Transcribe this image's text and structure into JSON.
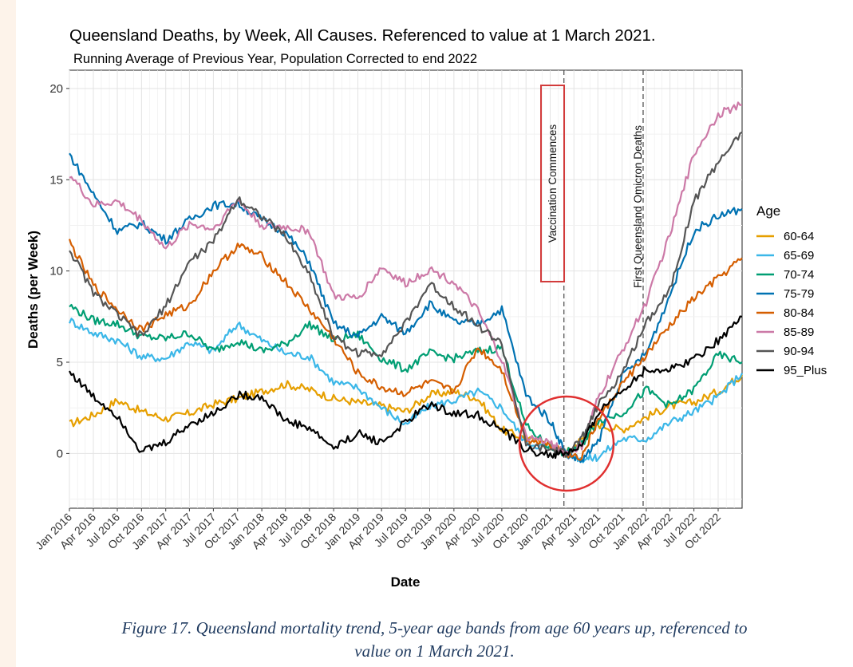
{
  "figure": {
    "caption_line1": "Figure 17. Queensland mortality trend, 5-year age bands from age 60 years up, referenced to",
    "caption_line2": "value on 1 March 2021."
  },
  "chart_data": {
    "type": "line",
    "title": "Queensland Deaths, by Week, All Causes. Referenced to value at 1 March 2021.",
    "subtitle": "Running Average of Previous Year, Population Corrected to end 2022",
    "xlabel": "Date",
    "ylabel": "Deaths (per Week)",
    "x_range": [
      "2016-01-01",
      "2022-12-31"
    ],
    "ylim": [
      -3,
      21
    ],
    "y_ticks": [
      0,
      5,
      10,
      15,
      20
    ],
    "x_tick_labels": [
      "Jan 2016",
      "Apr 2016",
      "Jul 2016",
      "Oct 2016",
      "Jan 2017",
      "Apr 2017",
      "Jul 2017",
      "Oct 2017",
      "Jan 2018",
      "Apr 2018",
      "Jul 2018",
      "Oct 2018",
      "Jan 2019",
      "Apr 2019",
      "Jul 2019",
      "Oct 2019",
      "Jan 2020",
      "Apr 2020",
      "Jul 2020",
      "Oct 2020",
      "Jan 2021",
      "Apr 2021",
      "Jul 2021",
      "Oct 2021",
      "Jan 2022",
      "Apr 2022",
      "Jul 2022",
      "Oct 2022"
    ],
    "grid": true,
    "legend_title": "Age",
    "legend_position": "right",
    "annotations": [
      {
        "label": "Vaccination Commences",
        "x": "2021-02-22",
        "style": "dashed vertical line, boxed rotated label"
      },
      {
        "label": "First Queensland Omicron Deaths",
        "x": "2021-12-20",
        "style": "dashed vertical line, rotated label"
      }
    ],
    "highlight": {
      "shape": "circle",
      "color": "#e03030",
      "center": {
        "x": "2021-03-15",
        "y": 0.3
      }
    },
    "series": [
      {
        "name": "60-64",
        "color": "#e69f00",
        "points": [
          [
            "2016-01-01",
            1.6
          ],
          [
            "2016-04-01",
            2.1
          ],
          [
            "2016-07-01",
            2.9
          ],
          [
            "2016-10-01",
            2.3
          ],
          [
            "2017-01-01",
            1.9
          ],
          [
            "2017-04-01",
            2.2
          ],
          [
            "2017-07-01",
            2.7
          ],
          [
            "2017-10-01",
            3.0
          ],
          [
            "2018-01-01",
            3.4
          ],
          [
            "2018-04-01",
            3.8
          ],
          [
            "2018-07-01",
            3.5
          ],
          [
            "2018-10-01",
            3.0
          ],
          [
            "2019-01-01",
            2.8
          ],
          [
            "2019-04-01",
            2.6
          ],
          [
            "2019-07-01",
            2.3
          ],
          [
            "2019-10-01",
            3.2
          ],
          [
            "2020-01-01",
            3.4
          ],
          [
            "2020-04-01",
            3.0
          ],
          [
            "2020-07-01",
            1.3
          ],
          [
            "2020-10-01",
            0.8
          ],
          [
            "2021-01-01",
            0.5
          ],
          [
            "2021-03-01",
            0.0
          ],
          [
            "2021-05-01",
            0.8
          ],
          [
            "2021-07-01",
            1.6
          ],
          [
            "2021-10-01",
            1.3
          ],
          [
            "2022-01-01",
            2.0
          ],
          [
            "2022-04-01",
            2.6
          ],
          [
            "2022-07-01",
            2.8
          ],
          [
            "2022-10-01",
            3.4
          ],
          [
            "2022-12-31",
            4.3
          ]
        ]
      },
      {
        "name": "65-69",
        "color": "#3bb7e8",
        "points": [
          [
            "2016-01-01",
            7.3
          ],
          [
            "2016-04-01",
            6.6
          ],
          [
            "2016-07-01",
            6.2
          ],
          [
            "2016-10-01",
            5.3
          ],
          [
            "2017-01-01",
            5.2
          ],
          [
            "2017-04-01",
            6.1
          ],
          [
            "2017-07-01",
            5.6
          ],
          [
            "2017-10-01",
            7.1
          ],
          [
            "2018-01-01",
            6.2
          ],
          [
            "2018-04-01",
            5.5
          ],
          [
            "2018-07-01",
            5.3
          ],
          [
            "2018-10-01",
            3.9
          ],
          [
            "2019-01-01",
            3.6
          ],
          [
            "2019-04-01",
            2.5
          ],
          [
            "2019-07-01",
            1.6
          ],
          [
            "2019-10-01",
            2.6
          ],
          [
            "2020-01-01",
            2.9
          ],
          [
            "2020-04-01",
            3.4
          ],
          [
            "2020-07-01",
            2.5
          ],
          [
            "2020-10-01",
            0.6
          ],
          [
            "2021-01-01",
            0.3
          ],
          [
            "2021-03-01",
            0.0
          ],
          [
            "2021-05-01",
            -0.3
          ],
          [
            "2021-07-01",
            -0.2
          ],
          [
            "2021-10-01",
            0.8
          ],
          [
            "2022-01-01",
            0.8
          ],
          [
            "2022-04-01",
            1.7
          ],
          [
            "2022-07-01",
            2.3
          ],
          [
            "2022-10-01",
            3.1
          ],
          [
            "2022-12-31",
            4.4
          ]
        ]
      },
      {
        "name": "70-74",
        "color": "#009e73",
        "points": [
          [
            "2016-01-01",
            8.1
          ],
          [
            "2016-04-01",
            7.3
          ],
          [
            "2016-07-01",
            7.1
          ],
          [
            "2016-10-01",
            6.4
          ],
          [
            "2017-01-01",
            6.3
          ],
          [
            "2017-04-01",
            6.6
          ],
          [
            "2017-07-01",
            5.6
          ],
          [
            "2017-10-01",
            6.2
          ],
          [
            "2018-01-01",
            5.6
          ],
          [
            "2018-04-01",
            6.0
          ],
          [
            "2018-07-01",
            7.1
          ],
          [
            "2018-10-01",
            6.2
          ],
          [
            "2019-01-01",
            6.5
          ],
          [
            "2019-04-01",
            5.2
          ],
          [
            "2019-07-01",
            4.6
          ],
          [
            "2019-10-01",
            5.5
          ],
          [
            "2020-01-01",
            5.2
          ],
          [
            "2020-04-01",
            5.6
          ],
          [
            "2020-07-01",
            5.8
          ],
          [
            "2020-10-01",
            1.5
          ],
          [
            "2021-01-01",
            0.3
          ],
          [
            "2021-03-01",
            0.0
          ],
          [
            "2021-05-01",
            0.5
          ],
          [
            "2021-07-01",
            1.8
          ],
          [
            "2021-10-01",
            2.2
          ],
          [
            "2022-01-01",
            3.5
          ],
          [
            "2022-04-01",
            2.6
          ],
          [
            "2022-07-01",
            3.5
          ],
          [
            "2022-10-01",
            5.4
          ],
          [
            "2022-12-31",
            5.0
          ]
        ]
      },
      {
        "name": "75-79",
        "color": "#0072b2",
        "points": [
          [
            "2016-01-01",
            16.4
          ],
          [
            "2016-04-01",
            14.2
          ],
          [
            "2016-07-01",
            12.2
          ],
          [
            "2016-10-01",
            12.6
          ],
          [
            "2017-01-01",
            11.7
          ],
          [
            "2017-04-01",
            12.8
          ],
          [
            "2017-07-01",
            13.6
          ],
          [
            "2017-10-01",
            13.7
          ],
          [
            "2018-01-01",
            12.8
          ],
          [
            "2018-04-01",
            12.1
          ],
          [
            "2018-07-01",
            10.5
          ],
          [
            "2018-10-01",
            7.1
          ],
          [
            "2019-01-01",
            6.4
          ],
          [
            "2019-04-01",
            7.5
          ],
          [
            "2019-07-01",
            6.6
          ],
          [
            "2019-10-01",
            8.2
          ],
          [
            "2020-01-01",
            7.2
          ],
          [
            "2020-04-01",
            7.1
          ],
          [
            "2020-07-01",
            7.9
          ],
          [
            "2020-10-01",
            3.2
          ],
          [
            "2021-01-01",
            1.8
          ],
          [
            "2021-03-01",
            0.0
          ],
          [
            "2021-05-01",
            -0.4
          ],
          [
            "2021-07-01",
            0.6
          ],
          [
            "2021-10-01",
            4.2
          ],
          [
            "2022-01-01",
            5.5
          ],
          [
            "2022-04-01",
            8.7
          ],
          [
            "2022-07-01",
            12.2
          ],
          [
            "2022-10-01",
            13.0
          ],
          [
            "2022-12-31",
            13.4
          ]
        ]
      },
      {
        "name": "80-84",
        "color": "#d55e00",
        "points": [
          [
            "2016-01-01",
            11.6
          ],
          [
            "2016-04-01",
            9.2
          ],
          [
            "2016-07-01",
            7.9
          ],
          [
            "2016-10-01",
            6.8
          ],
          [
            "2017-01-01",
            7.6
          ],
          [
            "2017-04-01",
            8.1
          ],
          [
            "2017-07-01",
            10.0
          ],
          [
            "2017-10-01",
            11.4
          ],
          [
            "2018-01-01",
            10.8
          ],
          [
            "2018-04-01",
            9.4
          ],
          [
            "2018-07-01",
            7.9
          ],
          [
            "2018-10-01",
            6.3
          ],
          [
            "2019-01-01",
            4.4
          ],
          [
            "2019-04-01",
            3.6
          ],
          [
            "2019-07-01",
            3.3
          ],
          [
            "2019-10-01",
            3.9
          ],
          [
            "2020-01-01",
            3.4
          ],
          [
            "2020-04-01",
            5.8
          ],
          [
            "2020-07-01",
            4.6
          ],
          [
            "2020-10-01",
            0.8
          ],
          [
            "2021-01-01",
            0.5
          ],
          [
            "2021-03-01",
            0.0
          ],
          [
            "2021-05-01",
            -0.2
          ],
          [
            "2021-07-01",
            1.8
          ],
          [
            "2021-10-01",
            3.8
          ],
          [
            "2022-01-01",
            5.4
          ],
          [
            "2022-04-01",
            7.0
          ],
          [
            "2022-07-01",
            8.5
          ],
          [
            "2022-10-01",
            9.6
          ],
          [
            "2022-12-31",
            10.7
          ]
        ]
      },
      {
        "name": "85-89",
        "color": "#cc79a7",
        "points": [
          [
            "2016-01-01",
            15.3
          ],
          [
            "2016-04-01",
            13.6
          ],
          [
            "2016-07-01",
            13.8
          ],
          [
            "2016-10-01",
            12.8
          ],
          [
            "2017-01-01",
            11.2
          ],
          [
            "2017-04-01",
            12.6
          ],
          [
            "2017-07-01",
            12.3
          ],
          [
            "2017-10-01",
            13.9
          ],
          [
            "2018-01-01",
            12.5
          ],
          [
            "2018-04-01",
            12.4
          ],
          [
            "2018-07-01",
            12.2
          ],
          [
            "2018-10-01",
            8.6
          ],
          [
            "2019-01-01",
            8.5
          ],
          [
            "2019-04-01",
            10.2
          ],
          [
            "2019-07-01",
            9.3
          ],
          [
            "2019-10-01",
            10.1
          ],
          [
            "2020-01-01",
            9.4
          ],
          [
            "2020-04-01",
            7.8
          ],
          [
            "2020-07-01",
            5.1
          ],
          [
            "2020-10-01",
            0.9
          ],
          [
            "2021-01-01",
            0.6
          ],
          [
            "2021-03-01",
            0.0
          ],
          [
            "2021-05-01",
            0.4
          ],
          [
            "2021-07-01",
            3.0
          ],
          [
            "2021-10-01",
            5.6
          ],
          [
            "2022-01-01",
            8.3
          ],
          [
            "2022-04-01",
            12.0
          ],
          [
            "2022-07-01",
            16.4
          ],
          [
            "2022-10-01",
            18.6
          ],
          [
            "2022-12-31",
            19.1
          ]
        ]
      },
      {
        "name": "90-94",
        "color": "#555555",
        "points": [
          [
            "2016-01-01",
            11.2
          ],
          [
            "2016-04-01",
            8.8
          ],
          [
            "2016-07-01",
            7.6
          ],
          [
            "2016-10-01",
            6.4
          ],
          [
            "2017-01-01",
            8.1
          ],
          [
            "2017-04-01",
            10.5
          ],
          [
            "2017-07-01",
            11.6
          ],
          [
            "2017-10-01",
            14.0
          ],
          [
            "2018-01-01",
            13.0
          ],
          [
            "2018-04-01",
            11.9
          ],
          [
            "2018-07-01",
            9.8
          ],
          [
            "2018-10-01",
            6.4
          ],
          [
            "2019-01-01",
            5.5
          ],
          [
            "2019-04-01",
            5.5
          ],
          [
            "2019-07-01",
            7.1
          ],
          [
            "2019-10-01",
            9.3
          ],
          [
            "2020-01-01",
            8.1
          ],
          [
            "2020-04-01",
            7.0
          ],
          [
            "2020-07-01",
            6.0
          ],
          [
            "2020-10-01",
            0.4
          ],
          [
            "2021-01-01",
            0.2
          ],
          [
            "2021-03-01",
            0.0
          ],
          [
            "2021-05-01",
            0.8
          ],
          [
            "2021-07-01",
            2.6
          ],
          [
            "2021-10-01",
            4.4
          ],
          [
            "2022-01-01",
            7.2
          ],
          [
            "2022-04-01",
            9.0
          ],
          [
            "2022-07-01",
            13.8
          ],
          [
            "2022-10-01",
            16.0
          ],
          [
            "2022-12-31",
            17.6
          ]
        ]
      },
      {
        "name": "95_Plus",
        "color": "#000000",
        "points": [
          [
            "2016-01-01",
            4.5
          ],
          [
            "2016-04-01",
            3.1
          ],
          [
            "2016-07-01",
            2.1
          ],
          [
            "2016-10-01",
            0.1
          ],
          [
            "2017-01-01",
            0.6
          ],
          [
            "2017-04-01",
            1.6
          ],
          [
            "2017-07-01",
            2.2
          ],
          [
            "2017-10-01",
            3.2
          ],
          [
            "2018-01-01",
            3.1
          ],
          [
            "2018-04-01",
            1.8
          ],
          [
            "2018-07-01",
            1.4
          ],
          [
            "2018-10-01",
            0.3
          ],
          [
            "2019-01-01",
            1.1
          ],
          [
            "2019-04-01",
            0.6
          ],
          [
            "2019-07-01",
            1.7
          ],
          [
            "2019-10-01",
            2.7
          ],
          [
            "2020-01-01",
            2.2
          ],
          [
            "2020-04-01",
            2.1
          ],
          [
            "2020-07-01",
            1.3
          ],
          [
            "2020-10-01",
            0.2
          ],
          [
            "2021-01-01",
            -0.1
          ],
          [
            "2021-03-01",
            0.0
          ],
          [
            "2021-05-01",
            0.4
          ],
          [
            "2021-07-01",
            2.2
          ],
          [
            "2021-10-01",
            3.5
          ],
          [
            "2022-01-01",
            4.6
          ],
          [
            "2022-04-01",
            4.6
          ],
          [
            "2022-07-01",
            5.2
          ],
          [
            "2022-10-01",
            6.2
          ],
          [
            "2022-12-31",
            7.5
          ]
        ]
      }
    ]
  }
}
